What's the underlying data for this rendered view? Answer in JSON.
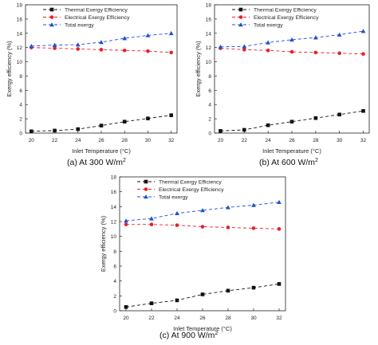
{
  "figure": {
    "charts": [
      {
        "caption_main": "(a)  At 300 W/m",
        "caption_sup": "2"
      },
      {
        "caption_main": "(b)  At 600 W/m",
        "caption_sup": "2"
      },
      {
        "caption_main": "(c)  At 900 W/m",
        "caption_sup": "2"
      }
    ]
  },
  "colors": {
    "thermal": "#111111",
    "electrical": "#e8202a",
    "total": "#1f4fd0"
  },
  "chart_data": [
    {
      "type": "line",
      "xlabel": "Inlet Temperature (°C)",
      "ylabel": "Exergy efficiency (%)",
      "xlim": [
        19.5,
        32.5
      ],
      "ylim": [
        0,
        18
      ],
      "xticks": [
        20,
        22,
        24,
        26,
        28,
        30,
        32
      ],
      "yticks": [
        0,
        2,
        4,
        6,
        8,
        10,
        12,
        14,
        16,
        18
      ],
      "grid": false,
      "legend_position": "top-left",
      "x": [
        20,
        22,
        24,
        26,
        28,
        30,
        32
      ],
      "series": [
        {
          "name": "Thermal Exergy Efficiency",
          "marker": "square",
          "color": "#111111",
          "values": [
            0.25,
            0.35,
            0.55,
            1.05,
            1.6,
            2.05,
            2.5
          ]
        },
        {
          "name": "Electrical Exergy Efficiency",
          "marker": "circle",
          "color": "#e8202a",
          "values": [
            12.0,
            11.9,
            11.8,
            11.7,
            11.6,
            11.5,
            11.3
          ]
        },
        {
          "name": "Total exergy",
          "marker": "triangle",
          "color": "#1f4fd0",
          "values": [
            12.2,
            12.35,
            12.4,
            12.75,
            13.3,
            13.7,
            14.0
          ]
        }
      ]
    },
    {
      "type": "line",
      "xlabel": "Inlet Temperature (°C)",
      "ylabel": "Exergy efficiency (%)",
      "xlim": [
        19.5,
        32.5
      ],
      "ylim": [
        0,
        18
      ],
      "xticks": [
        20,
        22,
        24,
        26,
        28,
        30,
        32
      ],
      "yticks": [
        0,
        2,
        4,
        6,
        8,
        10,
        12,
        14,
        16,
        18
      ],
      "grid": false,
      "legend_position": "top-left",
      "x": [
        20,
        22,
        24,
        26,
        28,
        30,
        32
      ],
      "series": [
        {
          "name": "Thermal Exergy Efficiency",
          "marker": "square",
          "color": "#111111",
          "values": [
            0.3,
            0.45,
            1.1,
            1.6,
            2.1,
            2.6,
            3.1
          ]
        },
        {
          "name": "Electrical Exergy Efficiency",
          "marker": "circle",
          "color": "#e8202a",
          "values": [
            11.9,
            11.7,
            11.6,
            11.4,
            11.3,
            11.2,
            11.1
          ]
        },
        {
          "name": "Total exergy",
          "marker": "triangle",
          "color": "#1f4fd0",
          "values": [
            12.1,
            12.15,
            12.7,
            13.1,
            13.4,
            13.8,
            14.3
          ]
        }
      ]
    },
    {
      "type": "line",
      "xlabel": "Inlet Temperature (°C)",
      "ylabel": "Exergy efficiency (%)",
      "xlim": [
        19.5,
        32.5
      ],
      "ylim": [
        0,
        18
      ],
      "xticks": [
        20,
        22,
        24,
        26,
        28,
        30,
        32
      ],
      "yticks": [
        0,
        2,
        4,
        6,
        8,
        10,
        12,
        14,
        16,
        18
      ],
      "grid": false,
      "legend_position": "top-left",
      "x": [
        20,
        22,
        24,
        26,
        28,
        30,
        32
      ],
      "series": [
        {
          "name": "Thermal Exergy Efficiency",
          "marker": "square",
          "color": "#111111",
          "values": [
            0.5,
            1.0,
            1.4,
            2.2,
            2.7,
            3.1,
            3.6
          ]
        },
        {
          "name": "Electrical Exergy Efficiency",
          "marker": "circle",
          "color": "#e8202a",
          "values": [
            11.6,
            11.6,
            11.5,
            11.3,
            11.2,
            11.1,
            11.0
          ]
        },
        {
          "name": "Total exergy",
          "marker": "triangle",
          "color": "#1f4fd0",
          "values": [
            12.1,
            12.4,
            13.1,
            13.5,
            13.9,
            14.2,
            14.6
          ]
        }
      ]
    }
  ]
}
